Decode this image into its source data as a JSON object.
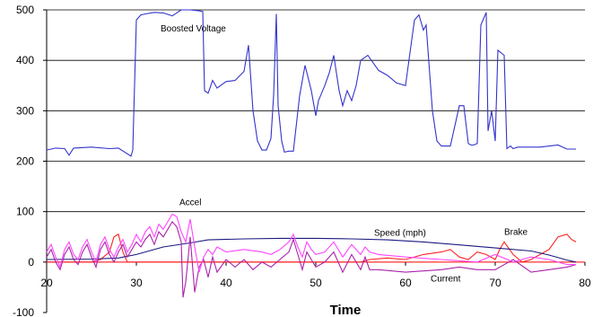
{
  "chart_data": {
    "type": "line",
    "title": "",
    "xlabel": "Time",
    "ylabel": "",
    "xlim": [
      20,
      80
    ],
    "ylim": [
      -100,
      500
    ],
    "x_ticks": [
      "20",
      "30",
      "40",
      "50",
      "60",
      "70",
      "80"
    ],
    "y_ticks": [
      "-100",
      "0",
      "100",
      "200",
      "300",
      "400",
      "500"
    ],
    "grid": "horizontal",
    "annotations": [
      {
        "text": "Boosted Voltage"
      },
      {
        "text": "Accel"
      },
      {
        "text": "Speed (mph)"
      },
      {
        "text": "Brake"
      },
      {
        "text": "Current"
      }
    ],
    "series": [
      {
        "name": "Boosted Voltage",
        "color": "#3333cc",
        "x": [
          20,
          21,
          22,
          22.5,
          23,
          25,
          27,
          28,
          29.4,
          29.6,
          30,
          30.5,
          31,
          32,
          33,
          34,
          35,
          36,
          37,
          37.4,
          37.6,
          38,
          38.5,
          39,
          40,
          41,
          42,
          42.5,
          43,
          43.5,
          44,
          44.5,
          45,
          45.3,
          45.6,
          45.8,
          46.2,
          46.5,
          47,
          47.5,
          48.2,
          48.8,
          49.5,
          50,
          50.3,
          51,
          51.5,
          52,
          52.6,
          53,
          53.5,
          54,
          54.5,
          55,
          55.4,
          55.8,
          57,
          58,
          59,
          60,
          61,
          61.5,
          62,
          62.3,
          63,
          63.5,
          64,
          65,
          66,
          66.5,
          67,
          67.3,
          67.6,
          68,
          68.4,
          69,
          69.2,
          69.6,
          70,
          70.3,
          71,
          71.3,
          71.7,
          72,
          72.5,
          75,
          77,
          78,
          79
        ],
        "y": [
          222,
          226,
          225,
          212,
          226,
          228,
          225,
          226,
          210,
          222,
          480,
          490,
          492,
          495,
          494,
          488,
          500,
          500,
          498,
          497,
          340,
          335,
          360,
          345,
          358,
          360,
          378,
          430,
          300,
          240,
          222,
          222,
          245,
          330,
          492,
          310,
          240,
          218,
          220,
          220,
          330,
          390,
          340,
          290,
          320,
          350,
          375,
          410,
          340,
          310,
          340,
          320,
          350,
          400,
          405,
          410,
          380,
          370,
          355,
          350,
          480,
          490,
          460,
          470,
          300,
          240,
          230,
          230,
          310,
          310,
          235,
          232,
          232,
          235,
          470,
          495,
          260,
          300,
          240,
          420,
          410,
          225,
          230,
          225,
          228,
          228,
          232,
          224,
          224
        ]
      },
      {
        "name": "Speed (mph)",
        "color": "#1a1a80",
        "x": [
          20,
          25,
          28,
          30,
          33,
          36,
          38,
          42,
          46,
          50,
          54,
          58,
          62,
          66,
          70,
          74,
          76,
          78,
          79
        ],
        "y": [
          5,
          6,
          8,
          15,
          30,
          38,
          44,
          46,
          47,
          47,
          46,
          44,
          40,
          34,
          28,
          22,
          14,
          4,
          0
        ]
      },
      {
        "name": "Accel",
        "color": "#ff44ff",
        "x": [
          20,
          20.5,
          21,
          21.5,
          22,
          22.5,
          23,
          23.5,
          24,
          24.5,
          25,
          25.5,
          26,
          26.5,
          27,
          27.5,
          28,
          28.5,
          29,
          29.5,
          30,
          30.5,
          31,
          31.5,
          32,
          32.5,
          33,
          33.5,
          34,
          34.5,
          35,
          35.5,
          36,
          36.5,
          37,
          37.5,
          38,
          38.5,
          39,
          40,
          42,
          44,
          45,
          46,
          47,
          47.5,
          48,
          48.5,
          49,
          49.5,
          50,
          51,
          52,
          53,
          54,
          55,
          55.5,
          56,
          57,
          60,
          64,
          68,
          70,
          72,
          74,
          76,
          78,
          79
        ],
        "y": [
          20,
          35,
          10,
          -10,
          25,
          40,
          15,
          5,
          30,
          45,
          20,
          0,
          35,
          50,
          25,
          10,
          30,
          45,
          20,
          35,
          55,
          40,
          60,
          70,
          50,
          75,
          65,
          80,
          95,
          90,
          60,
          40,
          85,
          30,
          -20,
          10,
          25,
          15,
          30,
          20,
          25,
          20,
          15,
          25,
          40,
          55,
          30,
          10,
          40,
          25,
          15,
          20,
          40,
          10,
          35,
          15,
          30,
          20,
          15,
          10,
          5,
          0,
          15,
          0,
          10,
          5,
          -5,
          -5
        ]
      },
      {
        "name": "Current",
        "color": "#aa22aa",
        "x": [
          20,
          20.5,
          21,
          21.5,
          22,
          22.5,
          23,
          23.5,
          24,
          24.5,
          25,
          25.5,
          26,
          26.5,
          27,
          27.5,
          28,
          28.5,
          29,
          29.5,
          30,
          30.5,
          31,
          31.5,
          32,
          32.5,
          33,
          33.5,
          34,
          34.5,
          35,
          35.2,
          35.5,
          36,
          36.5,
          37,
          37.5,
          38,
          38.5,
          39,
          40,
          41,
          42,
          43,
          44,
          45,
          46,
          47,
          47.5,
          48,
          48.5,
          49,
          49.5,
          50,
          51,
          52,
          53,
          54,
          55,
          55.5,
          56,
          57,
          60,
          64,
          66,
          68,
          70,
          72,
          74,
          76,
          78,
          79
        ],
        "y": [
          10,
          25,
          0,
          -15,
          15,
          30,
          5,
          -5,
          20,
          35,
          10,
          -10,
          25,
          40,
          15,
          0,
          20,
          35,
          10,
          25,
          40,
          30,
          45,
          55,
          35,
          60,
          50,
          65,
          80,
          70,
          40,
          -70,
          -40,
          50,
          -60,
          -10,
          5,
          -30,
          10,
          -20,
          5,
          -10,
          5,
          -15,
          0,
          -10,
          5,
          20,
          45,
          15,
          -15,
          20,
          5,
          -10,
          0,
          20,
          -20,
          15,
          -15,
          10,
          -15,
          -15,
          -20,
          -15,
          -10,
          -15,
          -15,
          5,
          -20,
          -15,
          -10,
          -5
        ]
      },
      {
        "name": "Brake",
        "color": "#ff2222",
        "x": [
          20,
          25,
          26,
          27,
          27.5,
          28,
          28.5,
          29,
          30,
          35,
          40,
          50,
          55,
          56,
          58,
          60,
          62,
          64,
          65,
          66,
          67,
          68,
          69,
          70,
          70.5,
          71,
          72,
          73,
          74,
          75,
          76,
          77,
          78,
          78.5,
          79
        ],
        "y": [
          0,
          0,
          5,
          20,
          50,
          55,
          20,
          0,
          0,
          0,
          0,
          0,
          0,
          5,
          8,
          5,
          15,
          20,
          25,
          10,
          5,
          20,
          15,
          5,
          25,
          40,
          15,
          0,
          5,
          15,
          25,
          50,
          55,
          45,
          40
        ]
      }
    ]
  }
}
